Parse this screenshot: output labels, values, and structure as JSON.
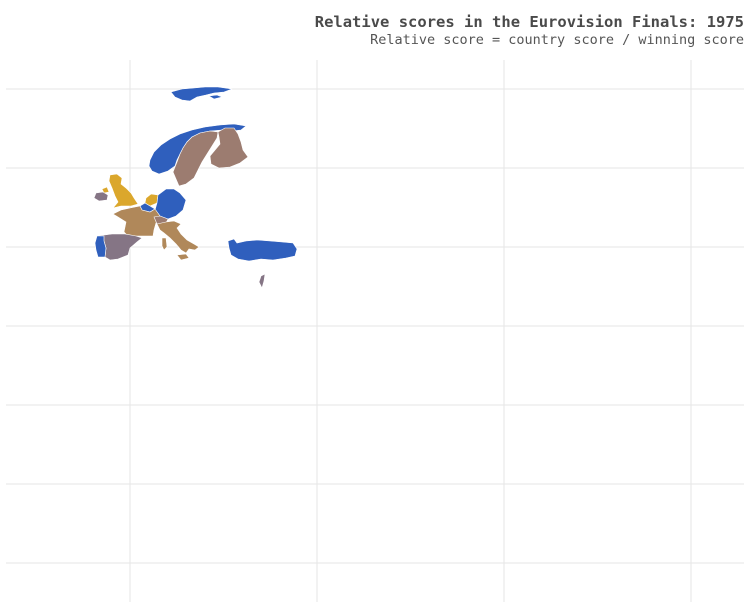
{
  "title": "Relative scores in the Eurovision Finals: 1975",
  "subtitle": "Relative score = country score / winning score",
  "grid": "on",
  "colors": {
    "blue": "#2f5fbd",
    "taupe": "#9c7c70",
    "tan": "#b0885a",
    "gold": "#dba72c",
    "mauve": "#857585",
    "gridline": "#e6e6e6"
  },
  "regions": [
    {
      "name": "iceland",
      "color": "blue"
    },
    {
      "name": "norway",
      "color": "blue"
    },
    {
      "name": "sweden",
      "color": "taupe"
    },
    {
      "name": "finland",
      "color": "taupe"
    },
    {
      "name": "united-kingdom",
      "color": "gold"
    },
    {
      "name": "ireland",
      "color": "mauve"
    },
    {
      "name": "netherlands",
      "color": "gold"
    },
    {
      "name": "germany",
      "color": "blue"
    },
    {
      "name": "belgium",
      "color": "blue"
    },
    {
      "name": "luxembourg",
      "color": "blue"
    },
    {
      "name": "france",
      "color": "tan"
    },
    {
      "name": "switzerland",
      "color": "taupe"
    },
    {
      "name": "italy",
      "color": "tan"
    },
    {
      "name": "sardinia",
      "color": "tan"
    },
    {
      "name": "sicily",
      "color": "tan"
    },
    {
      "name": "spain",
      "color": "mauve"
    },
    {
      "name": "portugal",
      "color": "blue"
    },
    {
      "name": "turkey",
      "color": "blue"
    },
    {
      "name": "israel",
      "color": "mauve"
    }
  ]
}
